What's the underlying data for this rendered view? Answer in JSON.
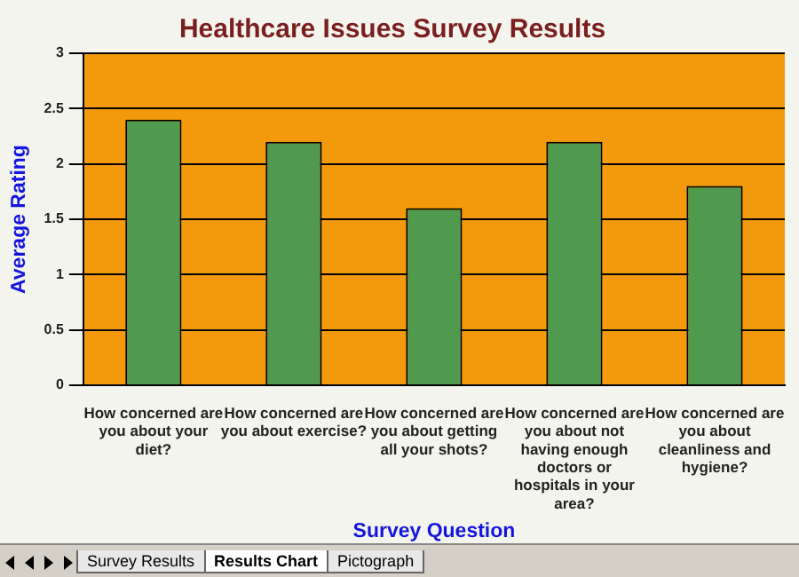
{
  "chart_data": {
    "type": "bar",
    "title": "Healthcare Issues Survey Results",
    "xlabel": "Survey Question",
    "ylabel": "Average Rating",
    "categories": [
      "How concerned are you about your diet?",
      "How concerned are you about exercise?",
      "How concerned are you about getting all your shots?",
      "How concerned are you about not having enough doctors or hospitals in your area?",
      "How concerned are you about cleanliness and hygiene?"
    ],
    "values": [
      2.4,
      2.2,
      1.6,
      2.2,
      1.8
    ],
    "color": "#4f9a4f",
    "ylim": [
      0,
      3
    ],
    "yticks": [
      0,
      0.5,
      1,
      1.5,
      2,
      2.5,
      3
    ],
    "grid": "y",
    "legend": false,
    "annotations": [
      "Survey Results",
      "Results Chart",
      "Pictograph"
    ]
  }
}
